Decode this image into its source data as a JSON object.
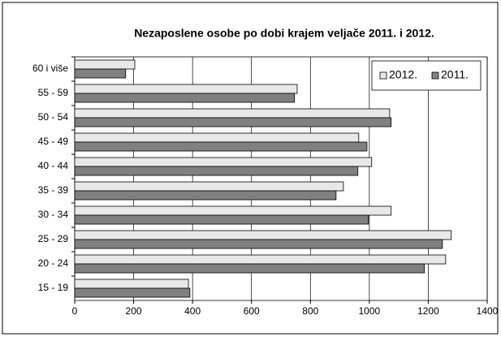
{
  "chart_data": {
    "type": "bar",
    "orientation": "horizontal",
    "title": "Nezaposlene osobe po dobi krajem veljače 2011. i 2012.",
    "categories": [
      "60 i više",
      "55 - 59",
      "50 - 54",
      "45 - 49",
      "40 - 44",
      "35 - 39",
      "30 - 34",
      "25 - 29",
      "20 - 24",
      "15 - 19"
    ],
    "series": [
      {
        "name": "2012.",
        "color": "#e8e8e8",
        "values": [
          204,
          755,
          1069,
          964,
          1008,
          912,
          1074,
          1278,
          1259,
          386
        ]
      },
      {
        "name": "2011.",
        "color": "#808080",
        "values": [
          173,
          746,
          1074,
          992,
          961,
          887,
          997,
          1248,
          1187,
          391
        ]
      }
    ],
    "xlim": [
      0,
      1400
    ],
    "xticks": [
      0,
      200,
      400,
      600,
      800,
      1000,
      1200,
      1400
    ],
    "grid": true,
    "legend": "top-right"
  }
}
